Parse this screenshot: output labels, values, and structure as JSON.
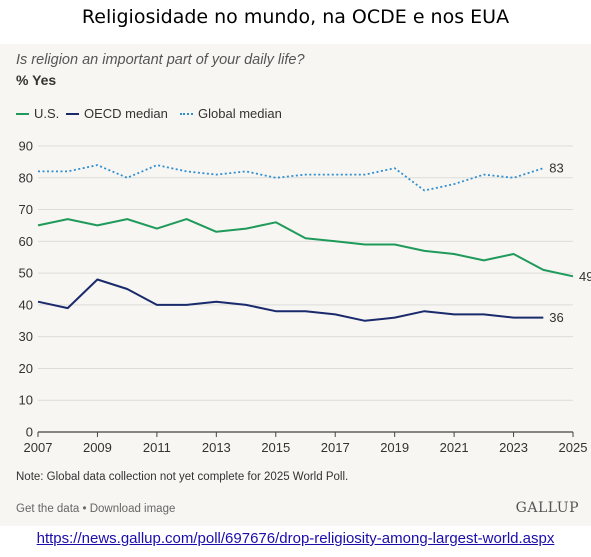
{
  "heading": "Religiosidade no mundo, na OCDE e nos EUA",
  "source_url": "https://news.gallup.com/poll/697676/drop-religiosity-among-largest-world.aspx",
  "chart_data": {
    "type": "line",
    "title": "Is religion an important part of your daily life?",
    "ylabel": "% Yes",
    "ylim": [
      0,
      90
    ],
    "y_ticks": [
      0,
      10,
      20,
      30,
      40,
      50,
      60,
      70,
      80,
      90
    ],
    "xlim": [
      2007,
      2025
    ],
    "x_ticks": [
      2007,
      2009,
      2011,
      2013,
      2015,
      2017,
      2019,
      2021,
      2023,
      2025
    ],
    "grid": true,
    "legend_position": "top-left",
    "series": [
      {
        "name": "U.S.",
        "color": "#1f9a5a",
        "style": "solid",
        "x": [
          2007,
          2008,
          2009,
          2010,
          2011,
          2012,
          2013,
          2014,
          2015,
          2016,
          2017,
          2018,
          2019,
          2020,
          2021,
          2022,
          2023,
          2024,
          2025
        ],
        "values": [
          65,
          67,
          65,
          67,
          64,
          67,
          63,
          64,
          66,
          61,
          60,
          59,
          59,
          57,
          56,
          54,
          56,
          51,
          49
        ],
        "end_label": "49"
      },
      {
        "name": "OECD median",
        "color": "#1a2a6c",
        "style": "solid",
        "x": [
          2007,
          2008,
          2009,
          2010,
          2011,
          2012,
          2013,
          2014,
          2015,
          2016,
          2017,
          2018,
          2019,
          2020,
          2021,
          2022,
          2023,
          2024
        ],
        "values": [
          41,
          39,
          48,
          45,
          40,
          40,
          41,
          40,
          38,
          38,
          37,
          35,
          36,
          38,
          37,
          37,
          36,
          36
        ],
        "end_label": "36"
      },
      {
        "name": "Global median",
        "color": "#2f8fd0",
        "style": "dotted",
        "x": [
          2007,
          2008,
          2009,
          2010,
          2011,
          2012,
          2013,
          2014,
          2015,
          2016,
          2017,
          2018,
          2019,
          2020,
          2021,
          2022,
          2023,
          2024
        ],
        "values": [
          82,
          82,
          84,
          80,
          84,
          82,
          81,
          82,
          80,
          81,
          81,
          81,
          83,
          76,
          78,
          81,
          80,
          83
        ],
        "end_label": "83"
      }
    ],
    "note": "Note: Global data collection not yet complete for 2025 World Poll."
  },
  "footer": {
    "links": "Get the data • Download image",
    "brand": "GALLUP"
  }
}
